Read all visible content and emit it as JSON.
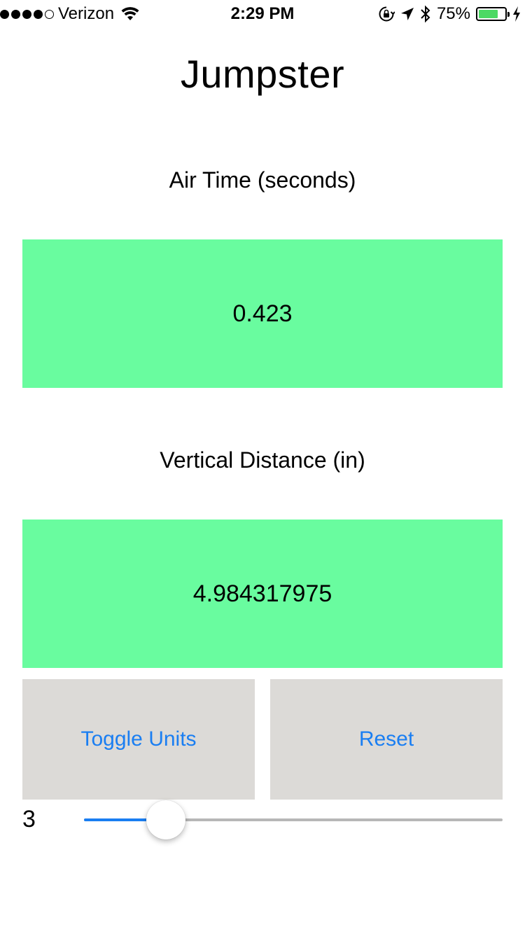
{
  "status_bar": {
    "carrier": "Verizon",
    "time": "2:29 PM",
    "battery_percent": "75%",
    "battery_level": 0.75,
    "signal_bars_filled": 4,
    "signal_bars_total": 5,
    "icons": [
      "signal-dots-icon",
      "wifi-icon",
      "rotation-lock-icon",
      "location-arrow-icon",
      "bluetooth-icon",
      "battery-icon",
      "charging-bolt-icon"
    ]
  },
  "app": {
    "title": "Jumpster"
  },
  "air_time": {
    "label": "Air Time (seconds)",
    "value": "0.423"
  },
  "vertical_distance": {
    "label": "Vertical Distance (in)",
    "value": "4.984317975"
  },
  "buttons": {
    "toggle_units": "Toggle Units",
    "reset": "Reset"
  },
  "slider": {
    "value_label": "3",
    "fraction": 0.196
  },
  "colors": {
    "value_box": "#69fc9f",
    "button_bg": "#dcdad7",
    "accent": "#1a7ef2",
    "battery_fill": "#4cd964"
  }
}
